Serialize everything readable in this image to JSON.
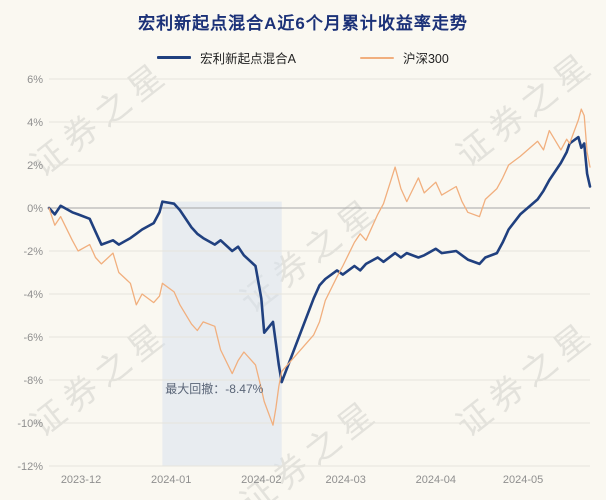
{
  "header": {
    "title": "宏利新起点混合A近6个月累计收益率走势"
  },
  "legend": [
    {
      "label": "宏利新起点混合A",
      "color": "#20407f"
    },
    {
      "label": "沪深300",
      "color": "#f1af7e"
    }
  ],
  "watermark": {
    "text": "证券之星"
  },
  "chart_data": {
    "type": "line",
    "title": "宏利新起点混合A近6个月累计收益率走势",
    "xlabel": "",
    "ylabel": "",
    "ylim": [
      -12,
      6
    ],
    "grid": true,
    "legend_position": "top",
    "x_range": [
      "2023-11-20",
      "2024-05-24"
    ],
    "x_ticks": [
      {
        "date": "2023-12-01",
        "label": "2023-12"
      },
      {
        "date": "2024-01-01",
        "label": "2024-01"
      },
      {
        "date": "2024-02-01",
        "label": "2024-02"
      },
      {
        "date": "2024-03-01",
        "label": "2024-03"
      },
      {
        "date": "2024-04-01",
        "label": "2024-04"
      },
      {
        "date": "2024-05-01",
        "label": "2024-05"
      }
    ],
    "y_ticks": [
      {
        "v": 6,
        "label": "6%"
      },
      {
        "v": 4,
        "label": "4%"
      },
      {
        "v": 2,
        "label": "2%"
      },
      {
        "v": 0,
        "label": "0%"
      },
      {
        "v": -2,
        "label": "-2%"
      },
      {
        "v": -4,
        "label": "-4%"
      },
      {
        "v": -6,
        "label": "-6%"
      },
      {
        "v": -8,
        "label": "-8%"
      },
      {
        "v": -10,
        "label": "-10%"
      },
      {
        "v": -12,
        "label": "-12%"
      }
    ],
    "colors": {
      "grid": "#e6e4dd",
      "zero_line": "#a6a6a6",
      "background": "#faf8f1"
    },
    "x": [
      "2023-11-20",
      "2023-11-22",
      "2023-11-24",
      "2023-11-28",
      "2023-11-30",
      "2023-12-04",
      "2023-12-06",
      "2023-12-08",
      "2023-12-12",
      "2023-12-14",
      "2023-12-18",
      "2023-12-20",
      "2023-12-22",
      "2023-12-26",
      "2023-12-28",
      "2023-12-29",
      "2024-01-02",
      "2024-01-04",
      "2024-01-08",
      "2024-01-10",
      "2024-01-12",
      "2024-01-16",
      "2024-01-18",
      "2024-01-22",
      "2024-01-24",
      "2024-01-26",
      "2024-01-30",
      "2024-02-01",
      "2024-02-02",
      "2024-02-05",
      "2024-02-06",
      "2024-02-07",
      "2024-02-08",
      "2024-02-19",
      "2024-02-21",
      "2024-02-23",
      "2024-02-27",
      "2024-02-29",
      "2024-03-04",
      "2024-03-06",
      "2024-03-08",
      "2024-03-12",
      "2024-03-14",
      "2024-03-18",
      "2024-03-20",
      "2024-03-22",
      "2024-03-26",
      "2024-03-28",
      "2024-04-01",
      "2024-04-03",
      "2024-04-08",
      "2024-04-10",
      "2024-04-12",
      "2024-04-16",
      "2024-04-18",
      "2024-04-22",
      "2024-04-24",
      "2024-04-26",
      "2024-04-30",
      "2024-05-06",
      "2024-05-08",
      "2024-05-10",
      "2024-05-14",
      "2024-05-16",
      "2024-05-17",
      "2024-05-20",
      "2024-05-21",
      "2024-05-22",
      "2024-05-23",
      "2024-05-24"
    ],
    "series": [
      {
        "name": "宏利新起点混合A",
        "color": "#20407f",
        "stroke_width": 2.6,
        "values": [
          0.0,
          -0.3,
          0.1,
          -0.2,
          -0.3,
          -0.5,
          -1.1,
          -1.7,
          -1.5,
          -1.7,
          -1.4,
          -1.2,
          -1.0,
          -0.7,
          -0.2,
          0.3,
          0.2,
          -0.1,
          -0.9,
          -1.2,
          -1.4,
          -1.7,
          -1.5,
          -2.0,
          -1.8,
          -2.2,
          -2.7,
          -4.2,
          -5.8,
          -5.3,
          -6.3,
          -7.3,
          -8.1,
          -4.2,
          -3.6,
          -3.3,
          -2.9,
          -3.1,
          -2.7,
          -2.9,
          -2.6,
          -2.3,
          -2.5,
          -2.1,
          -2.3,
          -2.1,
          -2.3,
          -2.2,
          -1.9,
          -2.1,
          -2.0,
          -2.2,
          -2.4,
          -2.6,
          -2.3,
          -2.1,
          -1.6,
          -1.0,
          -0.3,
          0.4,
          0.8,
          1.3,
          2.1,
          2.6,
          3.0,
          3.3,
          2.8,
          3.0,
          1.6,
          1.0
        ]
      },
      {
        "name": "沪深300",
        "color": "#f1af7e",
        "stroke_width": 1.3,
        "values": [
          0.0,
          -0.8,
          -0.4,
          -1.5,
          -2.0,
          -1.7,
          -2.3,
          -2.6,
          -2.1,
          -3.0,
          -3.5,
          -4.5,
          -4.0,
          -4.4,
          -4.1,
          -3.5,
          -3.9,
          -4.5,
          -5.4,
          -5.7,
          -5.3,
          -5.5,
          -6.6,
          -7.7,
          -7.1,
          -6.7,
          -7.3,
          -8.4,
          -9.0,
          -10.1,
          -9.3,
          -8.3,
          -7.6,
          -5.9,
          -5.3,
          -4.3,
          -3.2,
          -2.7,
          -1.6,
          -1.2,
          -1.5,
          -0.3,
          0.2,
          1.9,
          0.9,
          0.3,
          1.4,
          0.7,
          1.2,
          0.6,
          1.0,
          0.3,
          -0.2,
          -0.4,
          0.4,
          0.9,
          1.4,
          2.0,
          2.4,
          3.1,
          2.7,
          3.6,
          2.7,
          3.2,
          3.0,
          4.1,
          4.6,
          4.3,
          2.6,
          1.9
        ]
      }
    ],
    "drawdown_region": {
      "from": "2023-12-29",
      "to": "2024-02-08",
      "top_value": 0.3,
      "color": "#d9e1ee",
      "opacity": 0.55
    },
    "max_drawdown": {
      "text": "最大回撤：-8.47%",
      "x_date": "2023-12-30",
      "y_value": -8.6
    }
  }
}
